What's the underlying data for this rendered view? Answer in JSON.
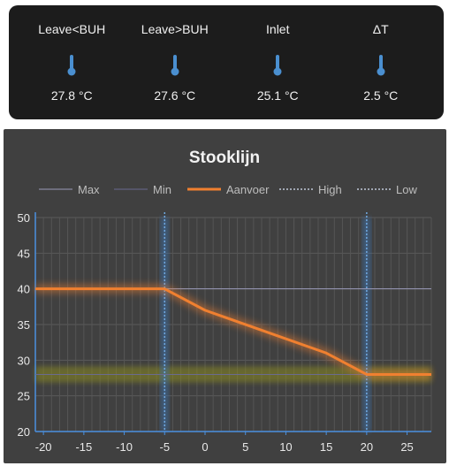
{
  "sensors": [
    {
      "label": "Leave<BUH",
      "value": "27.8 °C",
      "icon": "thermometer-icon"
    },
    {
      "label": "Leave>BUH",
      "value": "27.6 °C",
      "icon": "thermometer-icon"
    },
    {
      "label": "Inlet",
      "value": "25.1 °C",
      "icon": "thermometer-icon"
    },
    {
      "label": "ΔT",
      "value": "2.5 °C",
      "icon": "thermometer-icon"
    }
  ],
  "colors": {
    "card_bg": "#1c1c1c",
    "icon": "#4a8fd0",
    "chart_bg": "#404040",
    "aanvoer": "#f08030",
    "max": "#9a9ab8",
    "min": "#6a6a90",
    "high_low": "#6fa8e0",
    "band_low": "#8a8a20"
  },
  "chart_data": {
    "type": "line",
    "title": "Stooklijn",
    "legend_position": "top",
    "grid": true,
    "xlim": [
      -21,
      28
    ],
    "ylim": [
      20,
      50
    ],
    "x_ticks": [
      -20,
      -15,
      -10,
      -5,
      0,
      5,
      10,
      15,
      20,
      25
    ],
    "y_ticks": [
      20,
      25,
      30,
      35,
      40,
      45,
      50
    ],
    "series": [
      {
        "name": "Max",
        "style": "line",
        "x": [
          -21,
          28
        ],
        "y": [
          40,
          40
        ]
      },
      {
        "name": "Min",
        "style": "line",
        "x": [
          -21,
          28
        ],
        "y": [
          28,
          28
        ]
      },
      {
        "name": "Aanvoer",
        "style": "line",
        "x": [
          -21,
          -5,
          0,
          15,
          20,
          28
        ],
        "y": [
          40,
          40,
          37,
          31,
          28,
          28
        ]
      },
      {
        "name": "High",
        "style": "vertical-dotted",
        "x": [
          -5
        ]
      },
      {
        "name": "Low",
        "style": "vertical-dotted",
        "x": [
          20
        ]
      }
    ]
  }
}
